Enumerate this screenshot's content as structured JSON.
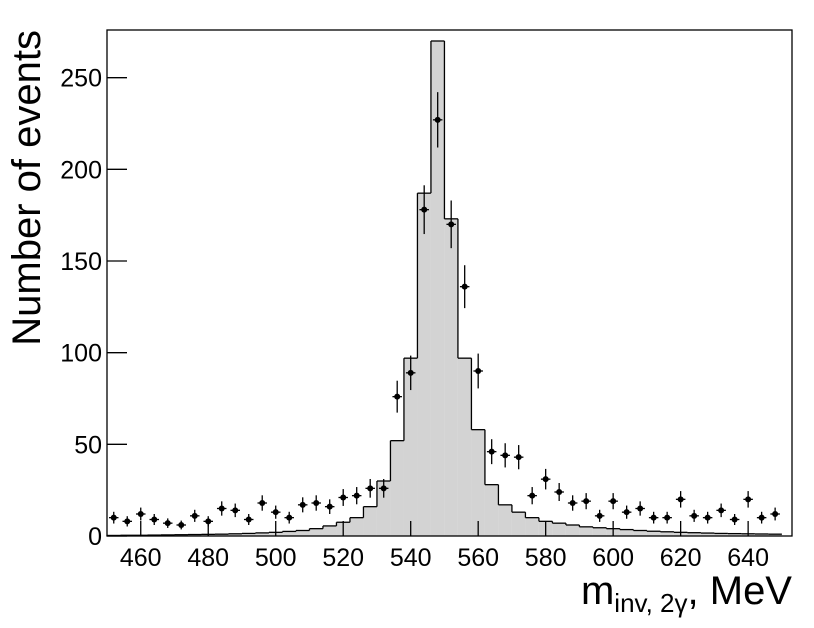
{
  "chart_data": {
    "type": "histogram",
    "y_label": "Number of events",
    "x_label": {
      "main": "m",
      "sub": "inv, 2γ",
      "unit": ", MeV"
    },
    "bins": [
      450,
      454,
      458,
      462,
      466,
      470,
      474,
      478,
      482,
      486,
      490,
      494,
      498,
      502,
      506,
      510,
      514,
      518,
      522,
      526,
      530,
      534,
      538,
      542,
      546,
      550,
      554,
      558,
      562,
      566,
      570,
      574,
      578,
      582,
      586,
      590,
      594,
      598,
      602,
      606,
      610,
      614,
      618,
      622,
      626,
      630,
      634,
      638,
      642,
      646,
      650
    ],
    "values": [
      0.3,
      0.4,
      0.4,
      0.5,
      0.6,
      0.7,
      0.8,
      0.9,
      1,
      1.2,
      1.4,
      1.7,
      2,
      2.5,
      3,
      4,
      5.5,
      7.5,
      10,
      16,
      30,
      52,
      97,
      187,
      270,
      173,
      97,
      58,
      28,
      17,
      13,
      10,
      8,
      7,
      6,
      5,
      4.5,
      4,
      3.5,
      3,
      2.6,
      2.3,
      2,
      1.8,
      1.6,
      1.4,
      1.3,
      1.2,
      1.1,
      1
    ],
    "color": "#d3d3d3",
    "data_points": {
      "values": [
        10,
        8,
        12,
        9,
        7,
        6,
        11,
        8,
        15,
        14,
        9,
        18,
        13,
        10,
        17,
        18,
        16,
        21,
        22,
        26,
        26,
        76,
        89,
        178,
        227,
        170,
        136,
        90,
        46,
        44,
        43,
        22,
        31,
        24,
        18,
        19,
        11,
        19,
        13,
        15,
        10,
        10,
        20,
        11,
        10,
        14,
        9,
        20,
        10,
        12
      ],
      "errors": [
        3.2,
        2.8,
        3.5,
        3,
        2.6,
        2.4,
        3.3,
        2.8,
        3.9,
        3.7,
        3,
        4.2,
        3.6,
        3.2,
        4.1,
        4.2,
        4,
        4.6,
        4.7,
        5.1,
        5.1,
        8.7,
        9.4,
        13.3,
        15.1,
        13,
        11.7,
        9.5,
        6.8,
        6.6,
        6.6,
        4.7,
        5.6,
        4.9,
        4.2,
        4.4,
        3.3,
        4.4,
        3.6,
        3.9,
        3.2,
        3.2,
        4.5,
        3.3,
        3.2,
        3.7,
        3,
        4.5,
        3.2,
        3.5
      ],
      "color": "#000000"
    },
    "xlim": [
      450,
      653
    ],
    "ylim": [
      0,
      276
    ],
    "xticks": [
      460,
      480,
      500,
      520,
      540,
      560,
      580,
      600,
      620,
      640
    ],
    "yticks": [
      0,
      50,
      100,
      150,
      200,
      250
    ]
  }
}
